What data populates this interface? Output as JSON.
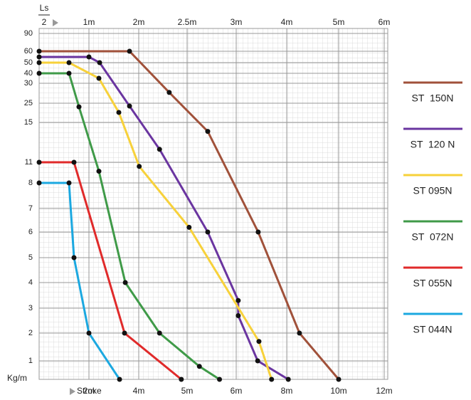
{
  "chart_data": {
    "type": "line",
    "x_label": "Stroke",
    "y_label": "Kg/m",
    "x2_label_top": "Ls",
    "x2_label_bottom": "2",
    "xlim": [
      0,
      12
    ],
    "xticks": [
      {
        "value": 2,
        "label": "2m"
      },
      {
        "value": 4,
        "label": "4m"
      },
      {
        "value": 5,
        "label": "5m"
      },
      {
        "value": 6,
        "label": "6m"
      },
      {
        "value": 8,
        "label": "8m"
      },
      {
        "value": 10,
        "label": "10m"
      },
      {
        "value": 12,
        "label": "12m"
      }
    ],
    "x2ticks": [
      {
        "value": 1,
        "label": "1m"
      },
      {
        "value": 2,
        "label": "2m"
      },
      {
        "value": 2.5,
        "label": "2.5m"
      },
      {
        "value": 3,
        "label": "3m"
      },
      {
        "value": 4,
        "label": "4m"
      },
      {
        "value": 5,
        "label": "5m"
      },
      {
        "value": 6,
        "label": "6m"
      }
    ],
    "ylim": [
      0,
      90
    ],
    "yticks": [
      90,
      60,
      50,
      40,
      30,
      25,
      15,
      11,
      8,
      7,
      6,
      5,
      4,
      3,
      2,
      1
    ],
    "grid": true,
    "series": [
      {
        "name": "ST  150N",
        "color": "#a0513a",
        "x": [
          0,
          3.63,
          4.63,
          5.42,
          6.87,
          8.49,
          10
        ],
        "values": [
          60,
          60,
          27.7,
          14.1,
          6,
          2,
          0
        ]
      },
      {
        "name": "ST  120 N",
        "color": "#6a35a0",
        "x": [
          0,
          2,
          2.43,
          3.63,
          4.43,
          5.42,
          6.08,
          6.08,
          6.85,
          8.06
        ],
        "values": [
          55,
          55,
          50,
          23.5,
          12.3,
          6,
          3.3,
          2.7,
          1,
          0
        ]
      },
      {
        "name": "ST 095N",
        "color": "#f7d13a",
        "x": [
          0,
          1.2,
          2.4,
          3.2,
          4.01,
          5.04,
          6.9,
          7.4
        ],
        "values": [
          50,
          50,
          35,
          20.2,
          10.4,
          6.2,
          1.7,
          0
        ]
      },
      {
        "name": "ST  072N",
        "color": "#3f9a48",
        "x": [
          0,
          1.2,
          1.6,
          2.4,
          3.46,
          4.43,
          5.25,
          5.66
        ],
        "values": [
          40,
          40,
          23.1,
          9.7,
          4,
          2,
          0.7,
          0
        ]
      },
      {
        "name": "ST 055N",
        "color": "#e02a2a",
        "x": [
          0,
          1.4,
          3.43,
          4.88
        ],
        "values": [
          11,
          11,
          2,
          0
        ]
      },
      {
        "name": "ST 044N",
        "color": "#1ba8e0",
        "x": [
          0,
          1.2,
          1.4,
          2,
          3.23
        ],
        "values": [
          8,
          8,
          5,
          2,
          0
        ]
      }
    ]
  }
}
